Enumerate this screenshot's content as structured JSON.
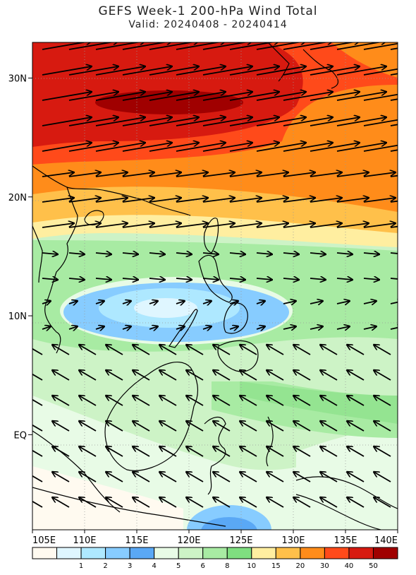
{
  "title": "GEFS Week-1 200-hPa Wind Total",
  "subtitle": "Valid: 20240408 - 20240414",
  "map": {
    "lon_range": [
      105,
      140
    ],
    "lat_range": [
      -8,
      33
    ],
    "lat_labels": [
      "30N",
      "20N",
      "10N",
      "EQ"
    ],
    "lat_values": [
      30,
      20,
      10,
      0
    ],
    "lon_labels": [
      "105E",
      "110E",
      "115E",
      "120E",
      "125E",
      "130E",
      "135E",
      "140E"
    ],
    "lon_values": [
      105,
      110,
      115,
      120,
      125,
      130,
      135,
      140
    ],
    "gridlines": "dotted"
  },
  "colorbar": {
    "colors": [
      "#fffaf0",
      "#dff6ff",
      "#aee8ff",
      "#87ccff",
      "#5aa8f5",
      "#e8fbe6",
      "#cdf3c6",
      "#a8eba3",
      "#7fde80",
      "#ffeea0",
      "#ffc04a",
      "#ff8c1a",
      "#ff4a1a",
      "#d71a10",
      "#a00000"
    ],
    "tick_labels": [
      "1",
      "2",
      "3",
      "4",
      "5",
      "6",
      "8",
      "10",
      "15",
      "20",
      "30",
      "40",
      "50"
    ]
  }
}
